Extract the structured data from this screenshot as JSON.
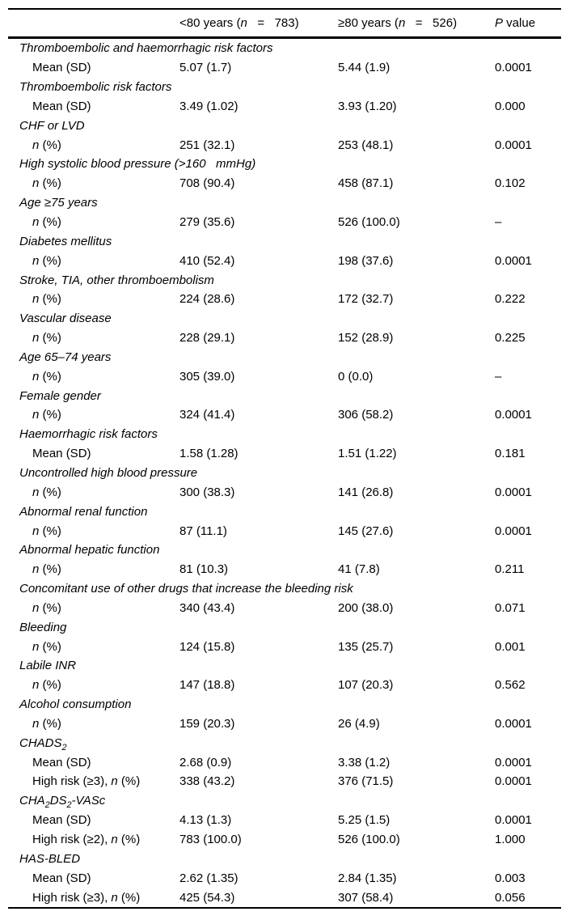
{
  "header": {
    "col2": [
      {
        "t": "<80 years ("
      },
      {
        "t": "n",
        "i": true
      },
      {
        "t": "   =   783)"
      }
    ],
    "col3": [
      {
        "t": "≥80 years ("
      },
      {
        "t": "n",
        "i": true
      },
      {
        "t": "   =   526)"
      }
    ],
    "col4": [
      {
        "t": "P",
        "i": true
      },
      {
        "t": " value"
      }
    ]
  },
  "rows": [
    {
      "kind": "section",
      "label": [
        {
          "t": "Thromboembolic and haemorrhagic risk factors",
          "i": true
        }
      ]
    },
    {
      "kind": "data",
      "label": [
        {
          "t": "Mean (SD)"
        }
      ],
      "v1": "5.07 (1.7)",
      "v2": "5.44 (1.9)",
      "p": "0.0001"
    },
    {
      "kind": "section",
      "label": [
        {
          "t": "Thromboembolic risk factors",
          "i": true
        }
      ]
    },
    {
      "kind": "data",
      "label": [
        {
          "t": "Mean (SD)"
        }
      ],
      "v1": "3.49 (1.02)",
      "v2": "3.93 (1.20)",
      "p": "0.000"
    },
    {
      "kind": "section",
      "label": [
        {
          "t": "CHF or LVD",
          "i": true
        }
      ]
    },
    {
      "kind": "data",
      "label": [
        {
          "t": "n",
          "i": true
        },
        {
          "t": " (%)"
        }
      ],
      "v1": "251 (32.1)",
      "v2": "253 (48.1)",
      "p": "0.0001"
    },
    {
      "kind": "section",
      "label": [
        {
          "t": "High systolic blood pressure (>160   mmHg)",
          "i": true
        }
      ]
    },
    {
      "kind": "data",
      "label": [
        {
          "t": "n",
          "i": true
        },
        {
          "t": " (%)"
        }
      ],
      "v1": "708 (90.4)",
      "v2": "458 (87.1)",
      "p": "0.102"
    },
    {
      "kind": "section",
      "label": [
        {
          "t": "Age ≥75 years",
          "i": true
        }
      ]
    },
    {
      "kind": "data",
      "label": [
        {
          "t": "n",
          "i": true
        },
        {
          "t": " (%)"
        }
      ],
      "v1": "279 (35.6)",
      "v2": "526 (100.0)",
      "p": "–"
    },
    {
      "kind": "section",
      "label": [
        {
          "t": "Diabetes mellitus",
          "i": true
        }
      ]
    },
    {
      "kind": "data",
      "label": [
        {
          "t": "n",
          "i": true
        },
        {
          "t": " (%)"
        }
      ],
      "v1": "410 (52.4)",
      "v2": "198 (37.6)",
      "p": "0.0001"
    },
    {
      "kind": "section",
      "label": [
        {
          "t": "Stroke, TIA, other thromboembolism",
          "i": true
        }
      ]
    },
    {
      "kind": "data",
      "label": [
        {
          "t": "n",
          "i": true
        },
        {
          "t": " (%)"
        }
      ],
      "v1": "224 (28.6)",
      "v2": "172 (32.7)",
      "p": "0.222"
    },
    {
      "kind": "section",
      "label": [
        {
          "t": "Vascular disease",
          "i": true
        }
      ]
    },
    {
      "kind": "data",
      "label": [
        {
          "t": "n",
          "i": true
        },
        {
          "t": " (%)"
        }
      ],
      "v1": "228 (29.1)",
      "v2": "152 (28.9)",
      "p": "0.225"
    },
    {
      "kind": "section",
      "label": [
        {
          "t": "Age 65–74 years",
          "i": true
        }
      ]
    },
    {
      "kind": "data",
      "label": [
        {
          "t": "n",
          "i": true
        },
        {
          "t": " (%)"
        }
      ],
      "v1": "305 (39.0)",
      "v2": "0 (0.0)",
      "p": "–"
    },
    {
      "kind": "section",
      "label": [
        {
          "t": "Female gender",
          "i": true
        }
      ]
    },
    {
      "kind": "data",
      "label": [
        {
          "t": "n",
          "i": true
        },
        {
          "t": " (%)"
        }
      ],
      "v1": "324 (41.4)",
      "v2": "306 (58.2)",
      "p": "0.0001"
    },
    {
      "kind": "section",
      "label": [
        {
          "t": "Haemorrhagic risk factors",
          "i": true
        }
      ]
    },
    {
      "kind": "data",
      "label": [
        {
          "t": "Mean (SD)"
        }
      ],
      "v1": "1.58 (1.28)",
      "v2": "1.51 (1.22)",
      "p": "0.181"
    },
    {
      "kind": "section",
      "label": [
        {
          "t": "Uncontrolled high blood pressure",
          "i": true
        }
      ]
    },
    {
      "kind": "data",
      "label": [
        {
          "t": "n",
          "i": true
        },
        {
          "t": " (%)"
        }
      ],
      "v1": "300 (38.3)",
      "v2": "141 (26.8)",
      "p": "0.0001"
    },
    {
      "kind": "section",
      "label": [
        {
          "t": "Abnormal renal function",
          "i": true
        }
      ]
    },
    {
      "kind": "data",
      "label": [
        {
          "t": "n",
          "i": true
        },
        {
          "t": " (%)"
        }
      ],
      "v1": "87 (11.1)",
      "v2": "145 (27.6)",
      "p": "0.0001"
    },
    {
      "kind": "section",
      "label": [
        {
          "t": "Abnormal hepatic function",
          "i": true
        }
      ]
    },
    {
      "kind": "data",
      "label": [
        {
          "t": "n",
          "i": true
        },
        {
          "t": " (%)"
        }
      ],
      "v1": "81 (10.3)",
      "v2": "41 (7.8)",
      "p": "0.211"
    },
    {
      "kind": "section",
      "label": [
        {
          "t": "Concomitant use of other drugs that increase the bleeding risk",
          "i": true
        }
      ]
    },
    {
      "kind": "data",
      "label": [
        {
          "t": "n",
          "i": true
        },
        {
          "t": " (%)"
        }
      ],
      "v1": "340 (43.4)",
      "v2": "200 (38.0)",
      "p": "0.071"
    },
    {
      "kind": "section",
      "label": [
        {
          "t": "Bleeding",
          "i": true
        }
      ]
    },
    {
      "kind": "data",
      "label": [
        {
          "t": "n",
          "i": true
        },
        {
          "t": " (%)"
        }
      ],
      "v1": "124 (15.8)",
      "v2": "135 (25.7)",
      "p": "0.001"
    },
    {
      "kind": "section",
      "label": [
        {
          "t": "Labile INR",
          "i": true
        }
      ]
    },
    {
      "kind": "data",
      "label": [
        {
          "t": "n",
          "i": true
        },
        {
          "t": " (%)"
        }
      ],
      "v1": "147 (18.8)",
      "v2": "107 (20.3)",
      "p": "0.562"
    },
    {
      "kind": "section",
      "label": [
        {
          "t": "Alcohol consumption",
          "i": true
        }
      ]
    },
    {
      "kind": "data",
      "label": [
        {
          "t": "n",
          "i": true
        },
        {
          "t": " (%)"
        }
      ],
      "v1": "159 (20.3)",
      "v2": "26 (4.9)",
      "p": "0.0001"
    },
    {
      "kind": "section",
      "label": [
        {
          "t": "CHADS",
          "i": true
        },
        {
          "t": "2",
          "i": true,
          "sub": true
        }
      ]
    },
    {
      "kind": "data",
      "label": [
        {
          "t": "Mean (SD)"
        }
      ],
      "v1": "2.68 (0.9)",
      "v2": "3.38 (1.2)",
      "p": "0.0001"
    },
    {
      "kind": "data",
      "label": [
        {
          "t": "High risk (≥3), "
        },
        {
          "t": "n",
          "i": true
        },
        {
          "t": " (%)"
        }
      ],
      "v1": "338 (43.2)",
      "v2": "376 (71.5)",
      "p": "0.0001"
    },
    {
      "kind": "section",
      "label": [
        {
          "t": "CHA",
          "i": true
        },
        {
          "t": "2",
          "i": true,
          "sub": true
        },
        {
          "t": "DS",
          "i": true
        },
        {
          "t": "2",
          "i": true,
          "sub": true
        },
        {
          "t": "-VASc",
          "i": true
        }
      ]
    },
    {
      "kind": "data",
      "label": [
        {
          "t": "Mean (SD)"
        }
      ],
      "v1": "4.13 (1.3)",
      "v2": "5.25 (1.5)",
      "p": "0.0001"
    },
    {
      "kind": "data",
      "label": [
        {
          "t": "High risk (≥2), "
        },
        {
          "t": "n",
          "i": true
        },
        {
          "t": " (%)"
        }
      ],
      "v1": "783 (100.0)",
      "v2": "526 (100.0)",
      "p": "1.000"
    },
    {
      "kind": "section",
      "label": [
        {
          "t": "HAS-BLED",
          "i": true
        }
      ]
    },
    {
      "kind": "data",
      "label": [
        {
          "t": "Mean (SD)"
        }
      ],
      "v1": "2.62 (1.35)",
      "v2": "2.84 (1.35)",
      "p": "0.003"
    },
    {
      "kind": "data",
      "label": [
        {
          "t": "High risk (≥3), "
        },
        {
          "t": "n",
          "i": true
        },
        {
          "t": " (%)"
        }
      ],
      "v1": "425 (54.3)",
      "v2": "307 (58.4)",
      "p": "0.056"
    }
  ]
}
